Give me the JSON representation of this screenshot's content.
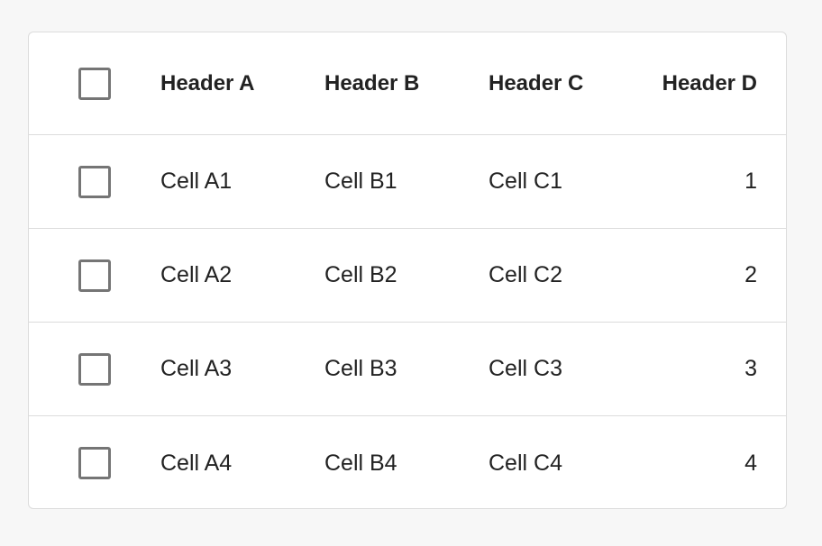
{
  "table": {
    "headers": [
      "Header A",
      "Header B",
      "Header C",
      "Header D"
    ],
    "rows": [
      [
        "Cell A1",
        "Cell B1",
        "Cell C1",
        1
      ],
      [
        "Cell A2",
        "Cell B2",
        "Cell C2",
        2
      ],
      [
        "Cell A3",
        "Cell B3",
        "Cell C3",
        3
      ],
      [
        "Cell A4",
        "Cell B4",
        "Cell C4",
        4
      ]
    ]
  }
}
